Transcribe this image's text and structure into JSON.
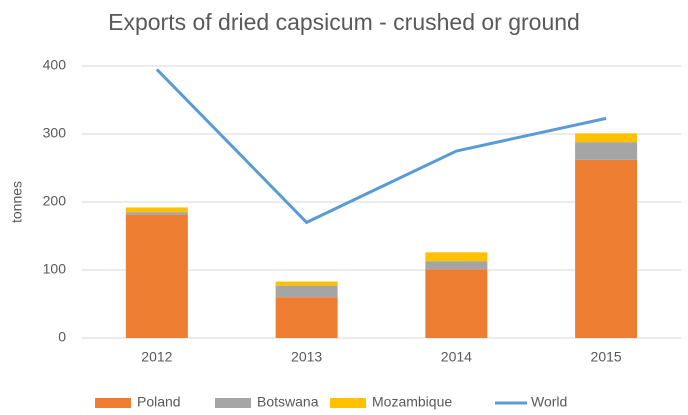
{
  "chart_data": {
    "type": "bar",
    "stacked": true,
    "title": "Exports of  dried capsicum - crushed or ground",
    "y_label": "tonnes",
    "categories": [
      "2012",
      "2013",
      "2014",
      "2015"
    ],
    "series": [
      {
        "name": "Poland",
        "color": "#ed7d31",
        "values": [
          181,
          60,
          101,
          262
        ]
      },
      {
        "name": "Botswana",
        "color": "#a5a5a5",
        "values": [
          4,
          17,
          12,
          26
        ]
      },
      {
        "name": "Mozambique",
        "color": "#ffc000",
        "values": [
          7,
          6,
          13,
          13
        ]
      },
      {
        "name": "World",
        "color": "#5b9bd5",
        "type": "line",
        "values": [
          395,
          170,
          275,
          323
        ]
      }
    ],
    "ylim": [
      0,
      400
    ],
    "yticks": [
      0,
      100,
      200,
      300,
      400
    ],
    "grid": true,
    "legend": "bottom"
  }
}
